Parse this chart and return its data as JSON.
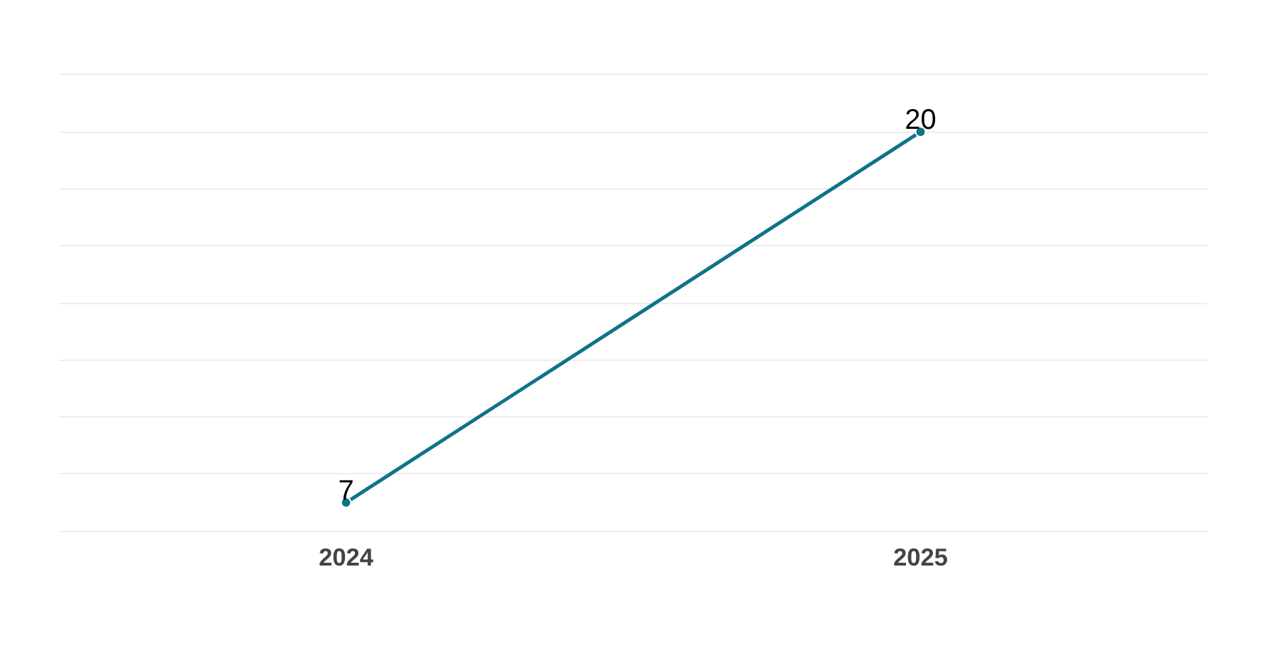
{
  "chart_data": {
    "type": "line",
    "categories": [
      "2024",
      "2025"
    ],
    "series": [
      {
        "color": "#0f7389",
        "values": [
          7,
          20
        ]
      }
    ],
    "yticks": [
      {
        "value": 6,
        "label": null
      },
      {
        "value": 8,
        "label": null
      },
      {
        "value": 10,
        "label": null
      },
      {
        "value": 12,
        "label": null
      },
      {
        "value": 14,
        "label": null
      },
      {
        "value": 16,
        "label": null
      },
      {
        "value": 18,
        "label": null
      },
      {
        "value": 20,
        "label": null
      },
      {
        "value": 22,
        "label": null
      }
    ],
    "tick_labels": "x",
    "grid": "y",
    "marker": "circle",
    "line_style": "solid",
    "data_labels": true
  }
}
